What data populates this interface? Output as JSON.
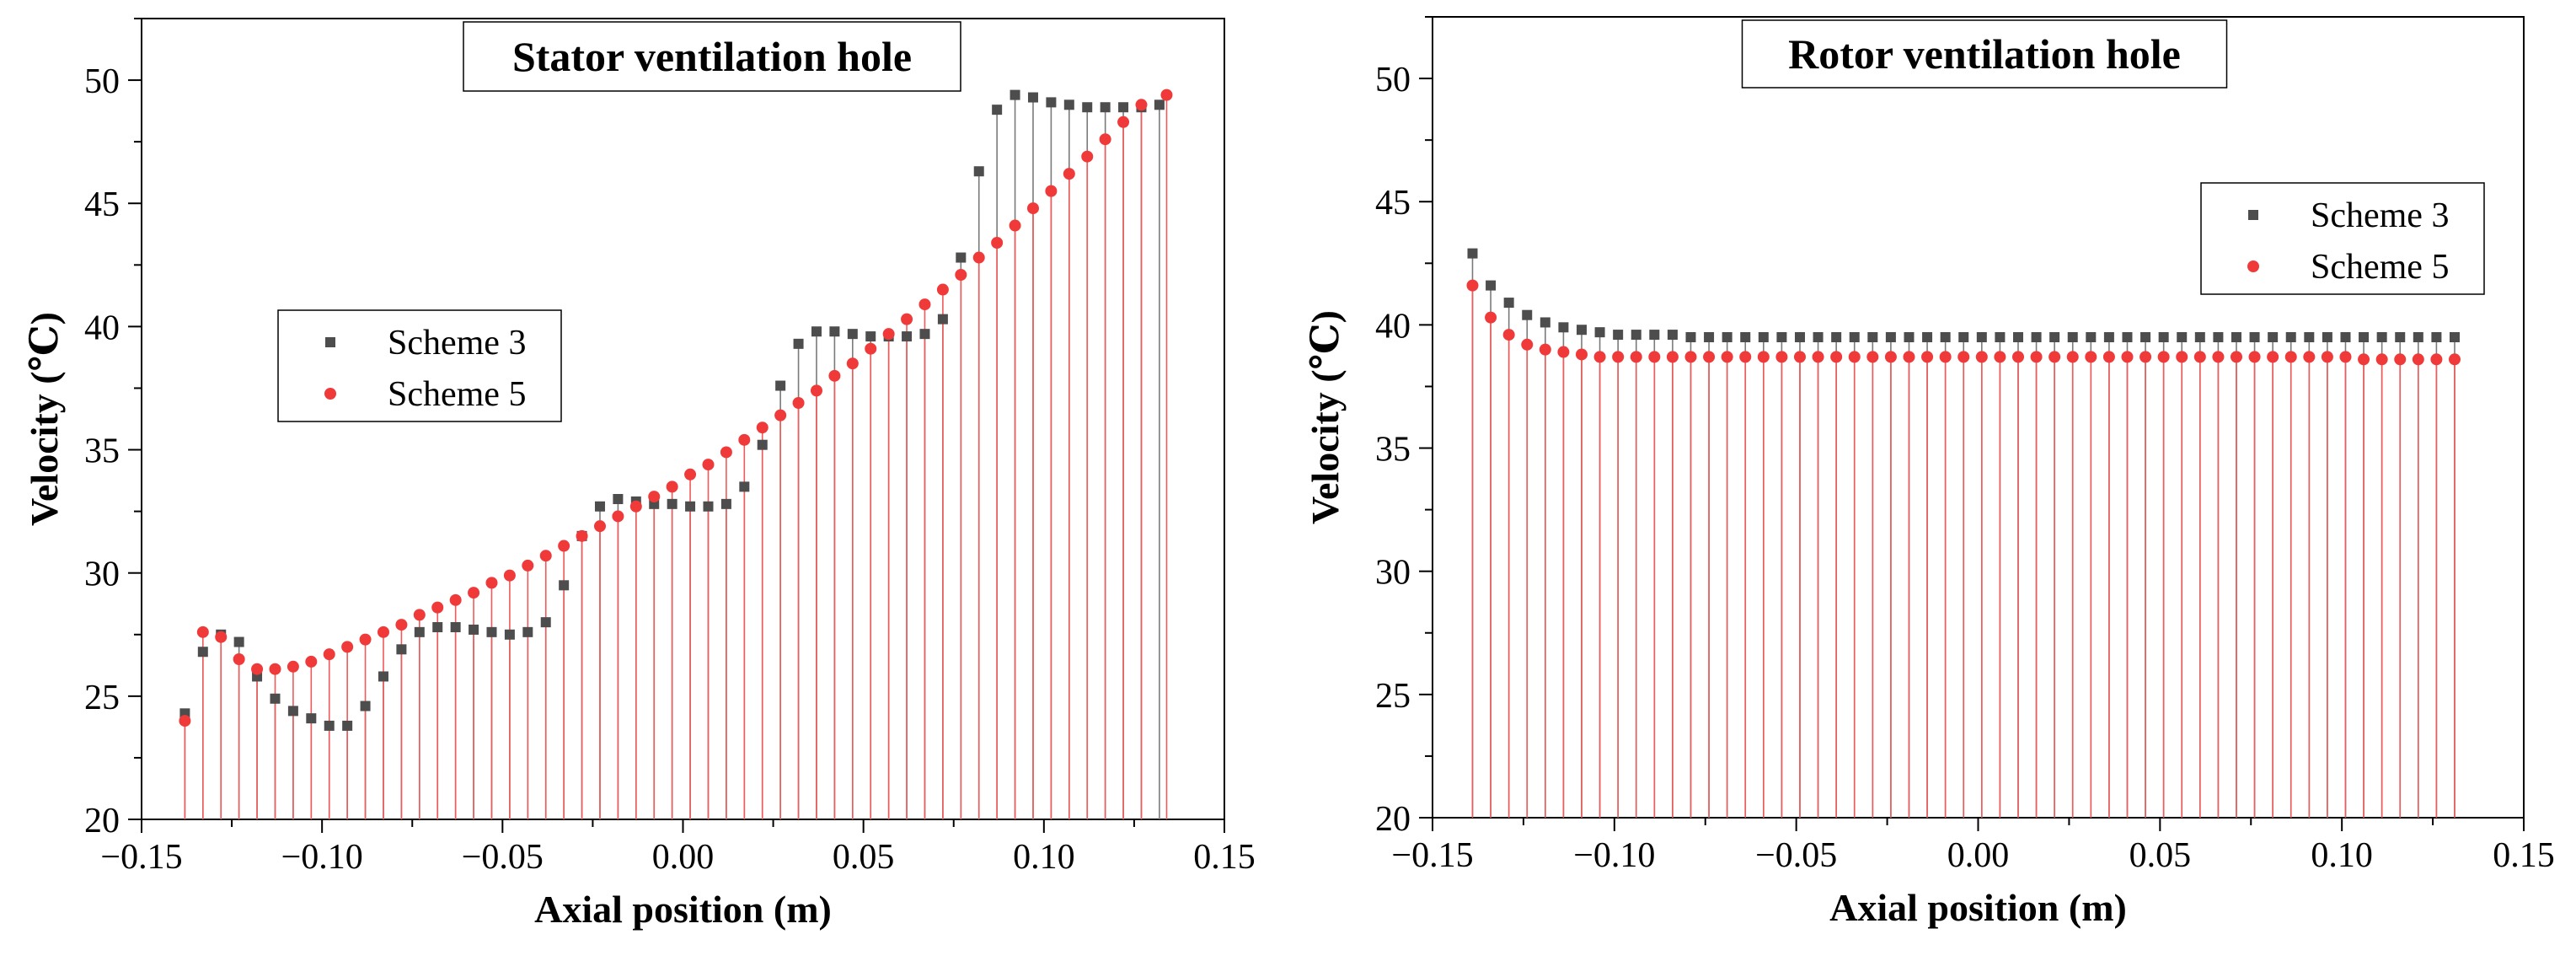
{
  "colors": {
    "scheme3": "#4d4d4d",
    "scheme5": "#f03a3a",
    "drop3": "#7a7a7a",
    "drop5": "#f05a5a"
  },
  "chart_data": [
    {
      "type": "scatter",
      "title": "Stator ventilation hole",
      "xlabel": "Axial position (m)",
      "ylabel": "Velocity (℃)",
      "xlim": [
        -0.15,
        0.15
      ],
      "ylim": [
        20,
        52.5
      ],
      "xticks": [
        -0.15,
        -0.1,
        -0.05,
        0.0,
        0.05,
        0.1,
        0.15
      ],
      "xtick_labels": [
        "−0.15",
        "−0.10",
        "−0.05",
        "0.00",
        "0.05",
        "0.10",
        "0.15"
      ],
      "yticks": [
        20,
        25,
        30,
        35,
        40,
        45,
        50
      ],
      "ytick_labels": [
        "20",
        "25",
        "30",
        "35",
        "40",
        "45",
        "50"
      ],
      "drop_lines": true,
      "legend_position": "middle-left",
      "series": [
        {
          "name": "Scheme 3",
          "marker": "square",
          "x": [
            -0.138,
            -0.133,
            -0.128,
            -0.123,
            -0.118,
            -0.113,
            -0.108,
            -0.103,
            -0.098,
            -0.093,
            -0.088,
            -0.083,
            -0.078,
            -0.073,
            -0.068,
            -0.063,
            -0.058,
            -0.053,
            -0.048,
            -0.043,
            -0.038,
            -0.033,
            -0.028,
            -0.023,
            -0.018,
            -0.013,
            -0.008,
            -0.003,
            0.002,
            0.007,
            0.012,
            0.017,
            0.022,
            0.027,
            0.032,
            0.037,
            0.042,
            0.047,
            0.052,
            0.057,
            0.062,
            0.067,
            0.072,
            0.077,
            0.082,
            0.087,
            0.092,
            0.097,
            0.102,
            0.107,
            0.112,
            0.117,
            0.122,
            0.127,
            0.132
          ],
          "y": [
            24.3,
            26.8,
            27.5,
            27.2,
            25.8,
            24.9,
            24.4,
            24.1,
            23.8,
            23.8,
            24.6,
            25.8,
            26.9,
            27.6,
            27.8,
            27.8,
            27.7,
            27.6,
            27.5,
            27.6,
            28.0,
            29.5,
            31.5,
            32.7,
            33.0,
            32.9,
            32.8,
            32.8,
            32.7,
            32.7,
            32.8,
            33.5,
            35.2,
            37.6,
            39.3,
            39.8,
            39.8,
            39.7,
            39.6,
            39.6,
            39.6,
            39.7,
            40.3,
            42.8,
            46.3,
            48.8,
            49.4,
            49.3,
            49.1,
            49.0,
            48.9,
            48.9,
            48.9,
            48.9,
            49.0
          ]
        },
        {
          "name": "Scheme 5",
          "marker": "circle",
          "x": [
            -0.138,
            -0.133,
            -0.128,
            -0.123,
            -0.118,
            -0.113,
            -0.108,
            -0.103,
            -0.098,
            -0.093,
            -0.088,
            -0.083,
            -0.078,
            -0.073,
            -0.068,
            -0.063,
            -0.058,
            -0.053,
            -0.048,
            -0.043,
            -0.038,
            -0.033,
            -0.028,
            -0.023,
            -0.018,
            -0.013,
            -0.008,
            -0.003,
            0.002,
            0.007,
            0.012,
            0.017,
            0.022,
            0.027,
            0.032,
            0.037,
            0.042,
            0.047,
            0.052,
            0.057,
            0.062,
            0.067,
            0.072,
            0.077,
            0.082,
            0.087,
            0.092,
            0.097,
            0.102,
            0.107,
            0.112,
            0.117,
            0.122,
            0.127,
            0.134
          ],
          "y": [
            24.0,
            27.6,
            27.4,
            26.5,
            26.1,
            26.1,
            26.2,
            26.4,
            26.7,
            27.0,
            27.3,
            27.6,
            27.9,
            28.3,
            28.6,
            28.9,
            29.2,
            29.6,
            29.9,
            30.3,
            30.7,
            31.1,
            31.5,
            31.9,
            32.3,
            32.7,
            33.1,
            33.5,
            34.0,
            34.4,
            34.9,
            35.4,
            35.9,
            36.4,
            36.9,
            37.4,
            38.0,
            38.5,
            39.1,
            39.7,
            40.3,
            40.9,
            41.5,
            42.1,
            42.8,
            43.4,
            44.1,
            44.8,
            45.5,
            46.2,
            46.9,
            47.6,
            48.3,
            49.0,
            49.4
          ]
        }
      ]
    },
    {
      "type": "scatter",
      "title": "Rotor ventilation hole",
      "xlabel": "Axial position (m)",
      "ylabel": "Velocity (℃)",
      "xlim": [
        -0.15,
        0.15
      ],
      "ylim": [
        20,
        52.5
      ],
      "xticks": [
        -0.15,
        -0.1,
        -0.05,
        0.0,
        0.05,
        0.1,
        0.15
      ],
      "xtick_labels": [
        "−0.15",
        "−0.10",
        "−0.05",
        "0.00",
        "0.05",
        "0.10",
        "0.15"
      ],
      "yticks": [
        20,
        25,
        30,
        35,
        40,
        45,
        50
      ],
      "ytick_labels": [
        "20",
        "25",
        "30",
        "35",
        "40",
        "45",
        "50"
      ],
      "drop_lines": true,
      "legend_position": "top-right",
      "series": [
        {
          "name": "Scheme 3",
          "marker": "square",
          "x": [
            -0.139,
            -0.134,
            -0.129,
            -0.124,
            -0.119,
            -0.114,
            -0.109,
            -0.104,
            -0.099,
            -0.094,
            -0.089,
            -0.084,
            -0.079,
            -0.074,
            -0.069,
            -0.064,
            -0.059,
            -0.054,
            -0.049,
            -0.044,
            -0.039,
            -0.034,
            -0.029,
            -0.024,
            -0.019,
            -0.014,
            -0.009,
            -0.004,
            0.001,
            0.006,
            0.011,
            0.016,
            0.021,
            0.026,
            0.031,
            0.036,
            0.041,
            0.046,
            0.051,
            0.056,
            0.061,
            0.066,
            0.071,
            0.076,
            0.081,
            0.086,
            0.091,
            0.096,
            0.101,
            0.106,
            0.111,
            0.116,
            0.121,
            0.126,
            0.131
          ],
          "y": [
            42.9,
            41.6,
            40.9,
            40.4,
            40.1,
            39.9,
            39.8,
            39.7,
            39.6,
            39.6,
            39.6,
            39.6,
            39.5,
            39.5,
            39.5,
            39.5,
            39.5,
            39.5,
            39.5,
            39.5,
            39.5,
            39.5,
            39.5,
            39.5,
            39.5,
            39.5,
            39.5,
            39.5,
            39.5,
            39.5,
            39.5,
            39.5,
            39.5,
            39.5,
            39.5,
            39.5,
            39.5,
            39.5,
            39.5,
            39.5,
            39.5,
            39.5,
            39.5,
            39.5,
            39.5,
            39.5,
            39.5,
            39.5,
            39.5,
            39.5,
            39.5,
            39.5,
            39.5,
            39.5,
            39.5
          ]
        },
        {
          "name": "Scheme 5",
          "marker": "circle",
          "x": [
            -0.139,
            -0.134,
            -0.129,
            -0.124,
            -0.119,
            -0.114,
            -0.109,
            -0.104,
            -0.099,
            -0.094,
            -0.089,
            -0.084,
            -0.079,
            -0.074,
            -0.069,
            -0.064,
            -0.059,
            -0.054,
            -0.049,
            -0.044,
            -0.039,
            -0.034,
            -0.029,
            -0.024,
            -0.019,
            -0.014,
            -0.009,
            -0.004,
            0.001,
            0.006,
            0.011,
            0.016,
            0.021,
            0.026,
            0.031,
            0.036,
            0.041,
            0.046,
            0.051,
            0.056,
            0.061,
            0.066,
            0.071,
            0.076,
            0.081,
            0.086,
            0.091,
            0.096,
            0.101,
            0.106,
            0.111,
            0.116,
            0.121,
            0.126,
            0.131
          ],
          "y": [
            41.6,
            40.3,
            39.6,
            39.2,
            39.0,
            38.9,
            38.8,
            38.7,
            38.7,
            38.7,
            38.7,
            38.7,
            38.7,
            38.7,
            38.7,
            38.7,
            38.7,
            38.7,
            38.7,
            38.7,
            38.7,
            38.7,
            38.7,
            38.7,
            38.7,
            38.7,
            38.7,
            38.7,
            38.7,
            38.7,
            38.7,
            38.7,
            38.7,
            38.7,
            38.7,
            38.7,
            38.7,
            38.7,
            38.7,
            38.7,
            38.7,
            38.7,
            38.7,
            38.7,
            38.7,
            38.7,
            38.7,
            38.7,
            38.7,
            38.6,
            38.6,
            38.6,
            38.6,
            38.6,
            38.6
          ]
        }
      ]
    }
  ]
}
